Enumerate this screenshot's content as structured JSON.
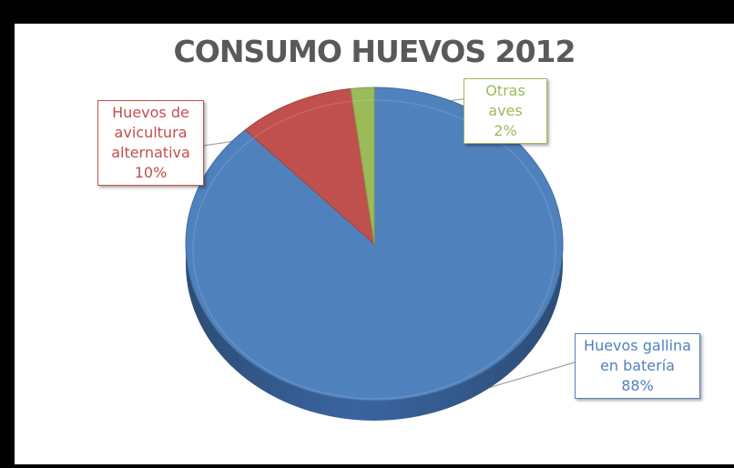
{
  "chart_data": {
    "type": "pie",
    "title": "CONSUMO HUEVOS 2012",
    "slices": [
      {
        "label_lines": [
          "Huevos gallina",
          "en batería"
        ],
        "value": 88,
        "value_label": "88%",
        "color": "#4f81bd"
      },
      {
        "label_lines": [
          "Huevos de",
          "avicultura",
          "alternativa"
        ],
        "value": 10,
        "value_label": "10%",
        "color": "#c0504d"
      },
      {
        "label_lines": [
          "Otras aves"
        ],
        "value": 2,
        "value_label": "2%",
        "color": "#9bbb59"
      }
    ],
    "legend": "none",
    "style": "3d"
  }
}
